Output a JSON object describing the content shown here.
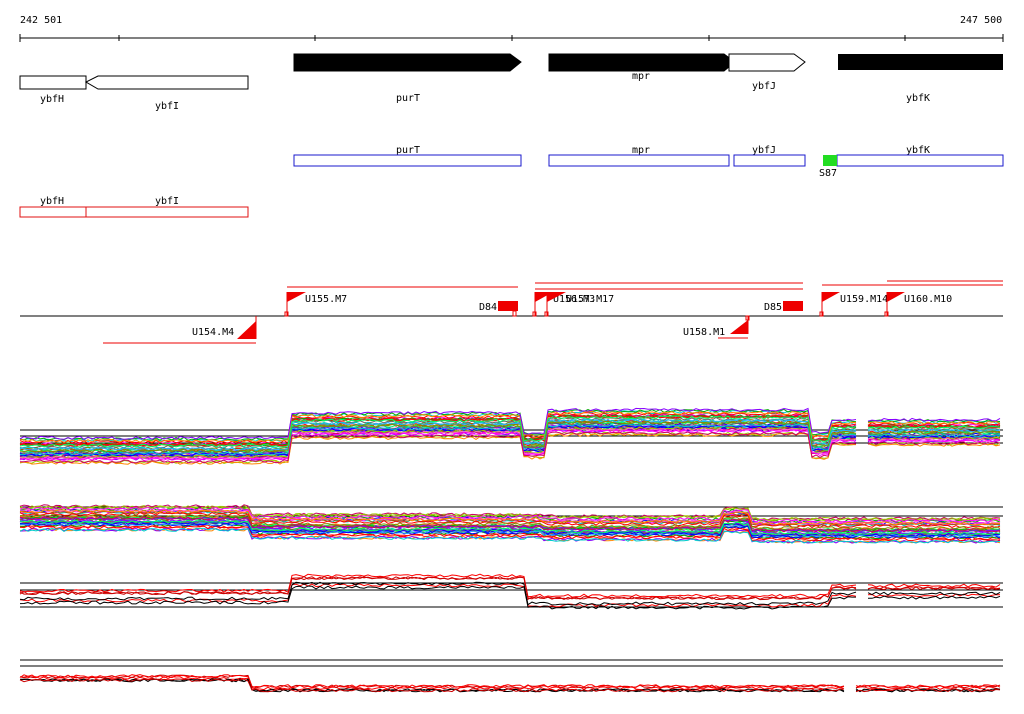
{
  "coordinates": {
    "start": "242 501",
    "end": "247 500"
  },
  "colors": {
    "gene_filled": "#000000",
    "gene_outline": "#000000",
    "cds_blue": "#1a1acc",
    "cds_red": "#e01010",
    "promoter_red": "#ee0000",
    "site_green": "#22dd22",
    "axis": "#000000"
  },
  "gene_track": {
    "genes": [
      {
        "label": "ybfH",
        "strand": "minus",
        "filled": false
      },
      {
        "label": "ybfI",
        "strand": "minus",
        "filled": false
      },
      {
        "label": "purT",
        "strand": "plus",
        "filled": true
      },
      {
        "label": "mpr",
        "strand": "plus",
        "filled": true
      },
      {
        "label": "ybfJ",
        "strand": "plus",
        "filled": false
      },
      {
        "label": "ybfK",
        "strand": "plus",
        "filled": true
      }
    ]
  },
  "blue_track": {
    "features": [
      {
        "label": "purT"
      },
      {
        "label": "mpr"
      },
      {
        "label": "ybfJ"
      },
      {
        "label": "ybfK"
      }
    ],
    "site": {
      "label": "S87"
    }
  },
  "red_track": {
    "features": [
      {
        "label": "ybfH"
      },
      {
        "label": "ybfI"
      }
    ]
  },
  "transcript_track": {
    "forward": [
      {
        "label": "U155.M7"
      },
      {
        "label": "U156.M3"
      },
      {
        "label": "U157.M17"
      },
      {
        "label": "U159.M14"
      },
      {
        "label": "U160.M10"
      }
    ],
    "reverse": [
      {
        "label": "U154.M4"
      },
      {
        "label": "U158.M1"
      }
    ],
    "blocks": [
      {
        "label": "D84"
      },
      {
        "label": "D85"
      }
    ]
  },
  "expression_panels": {
    "series_palette": [
      "#ff0000",
      "#00aa00",
      "#0000ff",
      "#ff00ff",
      "#00cccc",
      "#ff8800",
      "#8800ff",
      "#888800",
      "#00ff66",
      "#cc0066",
      "#666666",
      "#33aaff",
      "#aa5500",
      "#99cc00",
      "#ff66cc"
    ]
  }
}
